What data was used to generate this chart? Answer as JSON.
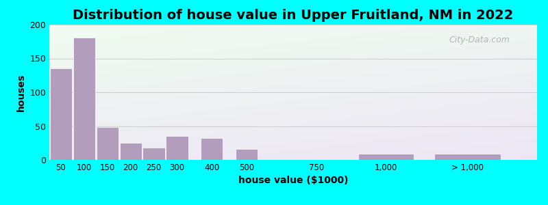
{
  "title": "Distribution of house value in Upper Fruitland, NM in 2022",
  "xlabel": "house value ($1000)",
  "ylabel": "houses",
  "bar_color": "#b39dbd",
  "bar_edgecolor": "#ffffff",
  "outer_bg": "#00ffff",
  "bg_topleft": "#f0faf0",
  "bg_bottomright": "#ede7f6",
  "ylim": [
    0,
    200
  ],
  "yticks": [
    0,
    50,
    100,
    150,
    200
  ],
  "categories": [
    "50",
    "100",
    "150",
    "200",
    "250",
    "300",
    "400",
    "500",
    "750",
    "1,000",
    "> 1,000"
  ],
  "values": [
    135,
    181,
    48,
    25,
    18,
    35,
    32,
    16,
    0,
    9,
    9
  ],
  "watermark": "City-Data.com",
  "title_fontsize": 14,
  "label_fontsize": 10
}
